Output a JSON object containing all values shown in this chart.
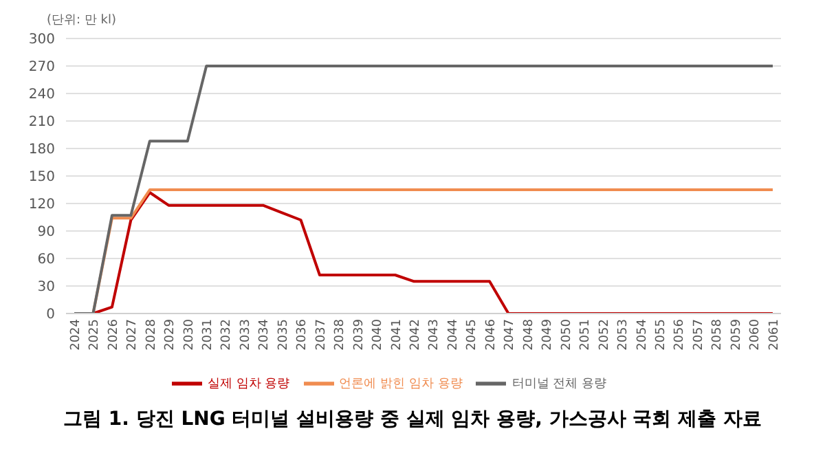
{
  "chart_data": {
    "type": "line",
    "title": "그림 1. 당진 LNG 터미널 설비용량 중 실제 임차 용량, 가스공사 국회 제출 자료",
    "ylabel": "(단위: 만 kl)",
    "categories": [
      "2024",
      "2025",
      "2026",
      "2027",
      "2028",
      "2029",
      "2030",
      "2031",
      "2032",
      "2033",
      "2034",
      "2035",
      "2036",
      "2037",
      "2038",
      "2039",
      "2040",
      "2041",
      "2042",
      "2043",
      "2044",
      "2045",
      "2046",
      "2047",
      "2048",
      "2049",
      "2050",
      "2051",
      "2052",
      "2053",
      "2054",
      "2055",
      "2056",
      "2057",
      "2058",
      "2059",
      "2060",
      "2061"
    ],
    "series": [
      {
        "name": "실제 임차 용량",
        "color": "#c00000",
        "values": [
          null,
          0,
          7,
          102,
          132,
          118,
          118,
          118,
          118,
          118,
          118,
          110,
          102,
          42,
          42,
          42,
          42,
          42,
          35,
          35,
          35,
          35,
          35,
          0,
          0,
          0,
          0,
          0,
          0,
          0,
          0,
          0,
          0,
          0,
          0,
          0,
          0,
          0
        ]
      },
      {
        "name": "언론에 밝힌 임차 용량",
        "color": "#f08c50",
        "values": [
          null,
          0,
          104,
          104,
          135,
          135,
          135,
          135,
          135,
          135,
          135,
          135,
          135,
          135,
          135,
          135,
          135,
          135,
          135,
          135,
          135,
          135,
          135,
          135,
          135,
          135,
          135,
          135,
          135,
          135,
          135,
          135,
          135,
          135,
          135,
          135,
          135,
          135
        ]
      },
      {
        "name": "터미널 전체 용량",
        "color": "#666666",
        "values": [
          0,
          0,
          107,
          107,
          188,
          188,
          188,
          270,
          270,
          270,
          270,
          270,
          270,
          270,
          270,
          270,
          270,
          270,
          270,
          270,
          270,
          270,
          270,
          270,
          270,
          270,
          270,
          270,
          270,
          270,
          270,
          270,
          270,
          270,
          270,
          270,
          270,
          270
        ]
      }
    ],
    "ylim": [
      0,
      300
    ],
    "yticks": [
      0,
      30,
      60,
      90,
      120,
      150,
      180,
      210,
      240,
      270,
      300
    ],
    "grid": "y",
    "legend": "bottom",
    "marker": "none",
    "line_style": "solid"
  }
}
